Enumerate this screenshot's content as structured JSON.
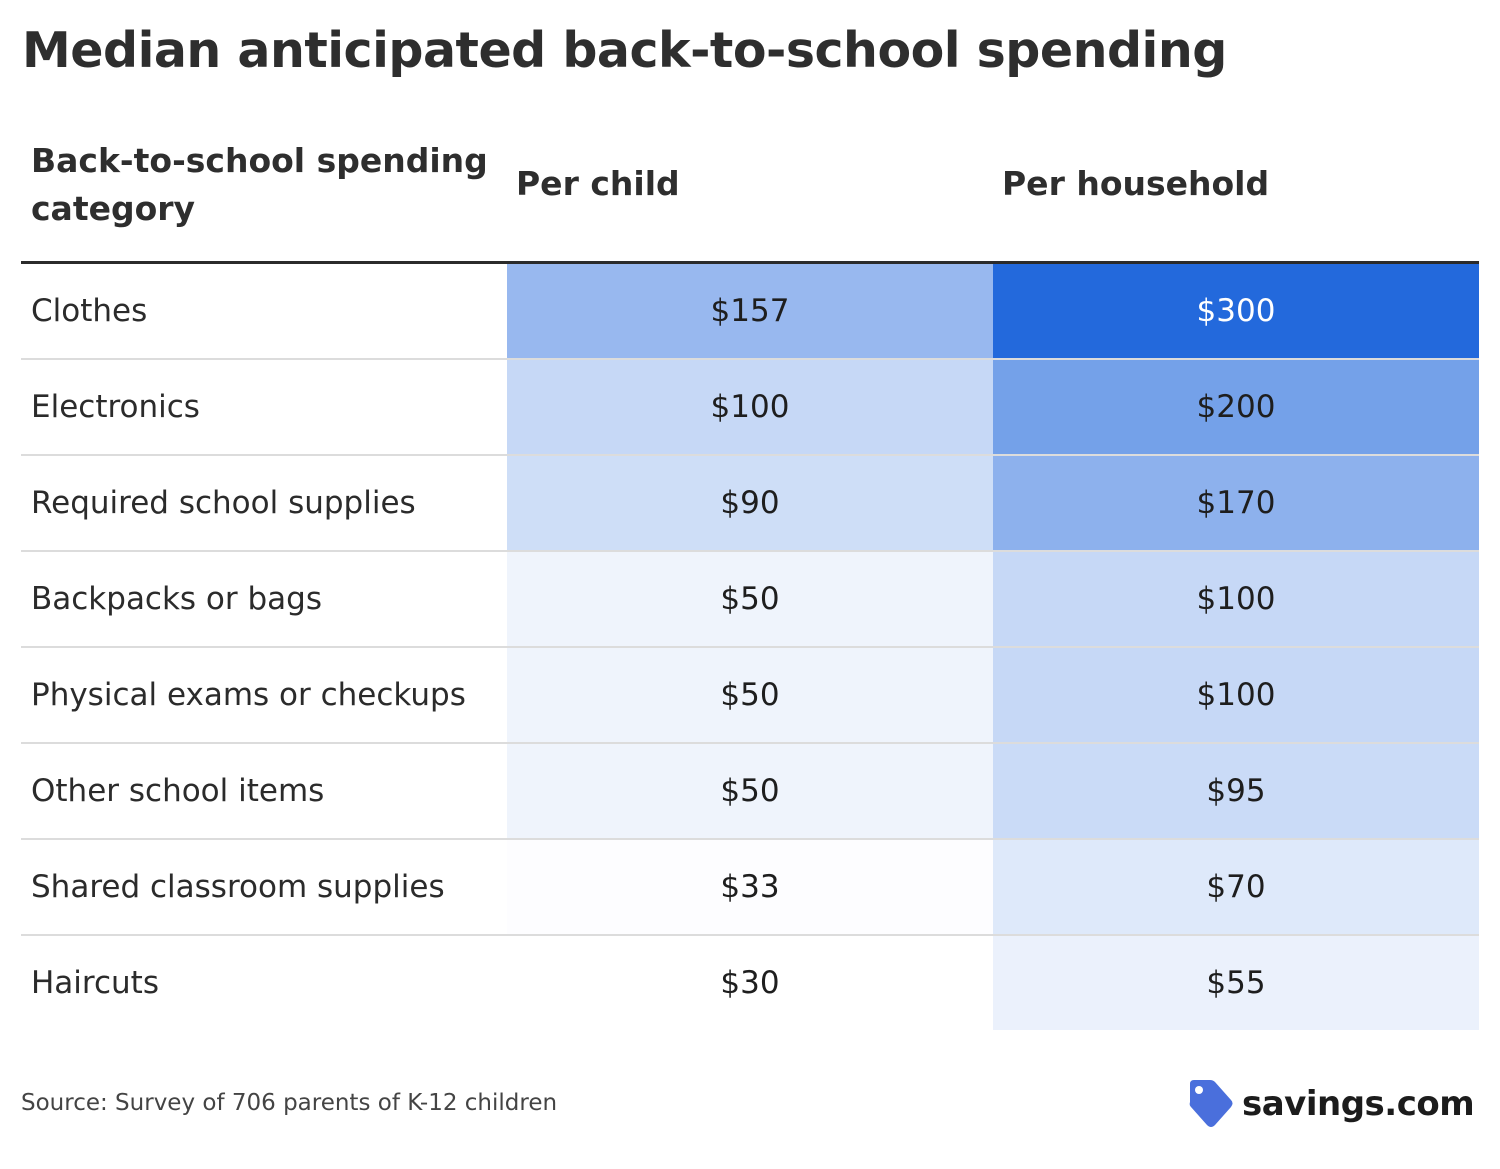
{
  "title": "Median anticipated back-to-school spending",
  "headers": {
    "category": "Back-to-school spending category",
    "per_child": "Per child",
    "per_household": "Per household"
  },
  "rows": [
    {
      "category": "Clothes",
      "per_child": "$157",
      "per_household": "$300"
    },
    {
      "category": "Electronics",
      "per_child": "$100",
      "per_household": "$200"
    },
    {
      "category": "Required school supplies",
      "per_child": "$90",
      "per_household": "$170"
    },
    {
      "category": "Backpacks or bags",
      "per_child": "$50",
      "per_household": "$100"
    },
    {
      "category": "Physical exams or checkups",
      "per_child": "$50",
      "per_household": "$100"
    },
    {
      "category": "Other school items",
      "per_child": "$50",
      "per_household": "$95"
    },
    {
      "category": "Shared classroom supplies",
      "per_child": "$33",
      "per_household": "$70"
    },
    {
      "category": "Haircuts",
      "per_child": "$30",
      "per_household": "$55"
    }
  ],
  "source": "Source: Survey of 706 parents of K-12 children",
  "logo": {
    "text": "savings.com",
    "icon": "price-tag-icon",
    "icon_color": "#4a6fdc"
  },
  "colors": {
    "scale_max": "#2369dc",
    "scale_min": "#ffffff"
  },
  "chart_data": {
    "type": "table",
    "title": "Median anticipated back-to-school spending",
    "columns": [
      "Back-to-school spending category",
      "Per child",
      "Per household"
    ],
    "categories": [
      "Clothes",
      "Electronics",
      "Required school supplies",
      "Backpacks or bags",
      "Physical exams or checkups",
      "Other school items",
      "Shared classroom supplies",
      "Haircuts"
    ],
    "series": [
      {
        "name": "Per child",
        "values": [
          157,
          100,
          90,
          50,
          50,
          50,
          33,
          30
        ]
      },
      {
        "name": "Per household",
        "values": [
          300,
          200,
          170,
          100,
          100,
          95,
          70,
          55
        ]
      }
    ]
  }
}
